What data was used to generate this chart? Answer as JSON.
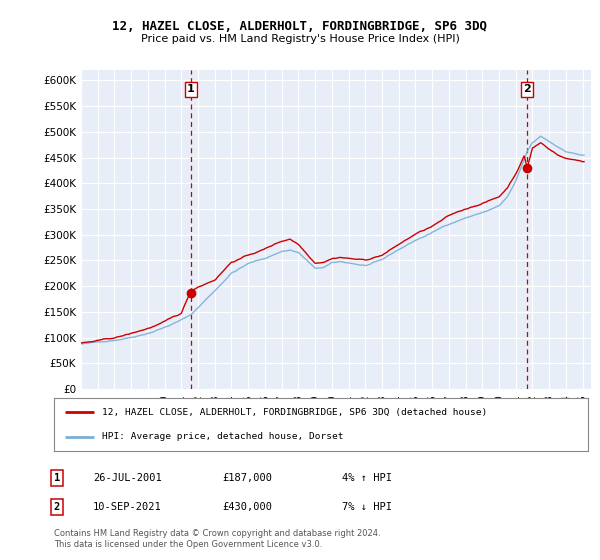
{
  "title": "12, HAZEL CLOSE, ALDERHOLT, FORDINGBRIDGE, SP6 3DQ",
  "subtitle": "Price paid vs. HM Land Registry's House Price Index (HPI)",
  "ylabel_ticks": [
    "£0",
    "£50K",
    "£100K",
    "£150K",
    "£200K",
    "£250K",
    "£300K",
    "£350K",
    "£400K",
    "£450K",
    "£500K",
    "£550K",
    "£600K"
  ],
  "ytick_values": [
    0,
    50000,
    100000,
    150000,
    200000,
    250000,
    300000,
    350000,
    400000,
    450000,
    500000,
    550000,
    600000
  ],
  "ylim": [
    0,
    620000
  ],
  "xlim": [
    1995.0,
    2025.5
  ],
  "sale1": {
    "date_num": 2001.57,
    "price": 187000,
    "label": "1",
    "pct": "4%",
    "dir": "↑",
    "date_str": "26-JUL-2001",
    "price_str": "£187,000"
  },
  "sale2": {
    "date_num": 2021.69,
    "price": 430000,
    "label": "2",
    "pct": "7%",
    "dir": "↓",
    "date_str": "10-SEP-2021",
    "price_str": "£430,000"
  },
  "vline_color": "#cc0000",
  "hpi_color": "#7aafd4",
  "price_color": "#cc0000",
  "legend_label1": "12, HAZEL CLOSE, ALDERHOLT, FORDINGBRIDGE, SP6 3DQ (detached house)",
  "legend_label2": "HPI: Average price, detached house, Dorset",
  "footnote": "Contains HM Land Registry data © Crown copyright and database right 2024.\nThis data is licensed under the Open Government Licence v3.0.",
  "background_color": "#e8eef8",
  "grid_color": "#d0d8e8",
  "title_fontsize": 9,
  "subtitle_fontsize": 8
}
